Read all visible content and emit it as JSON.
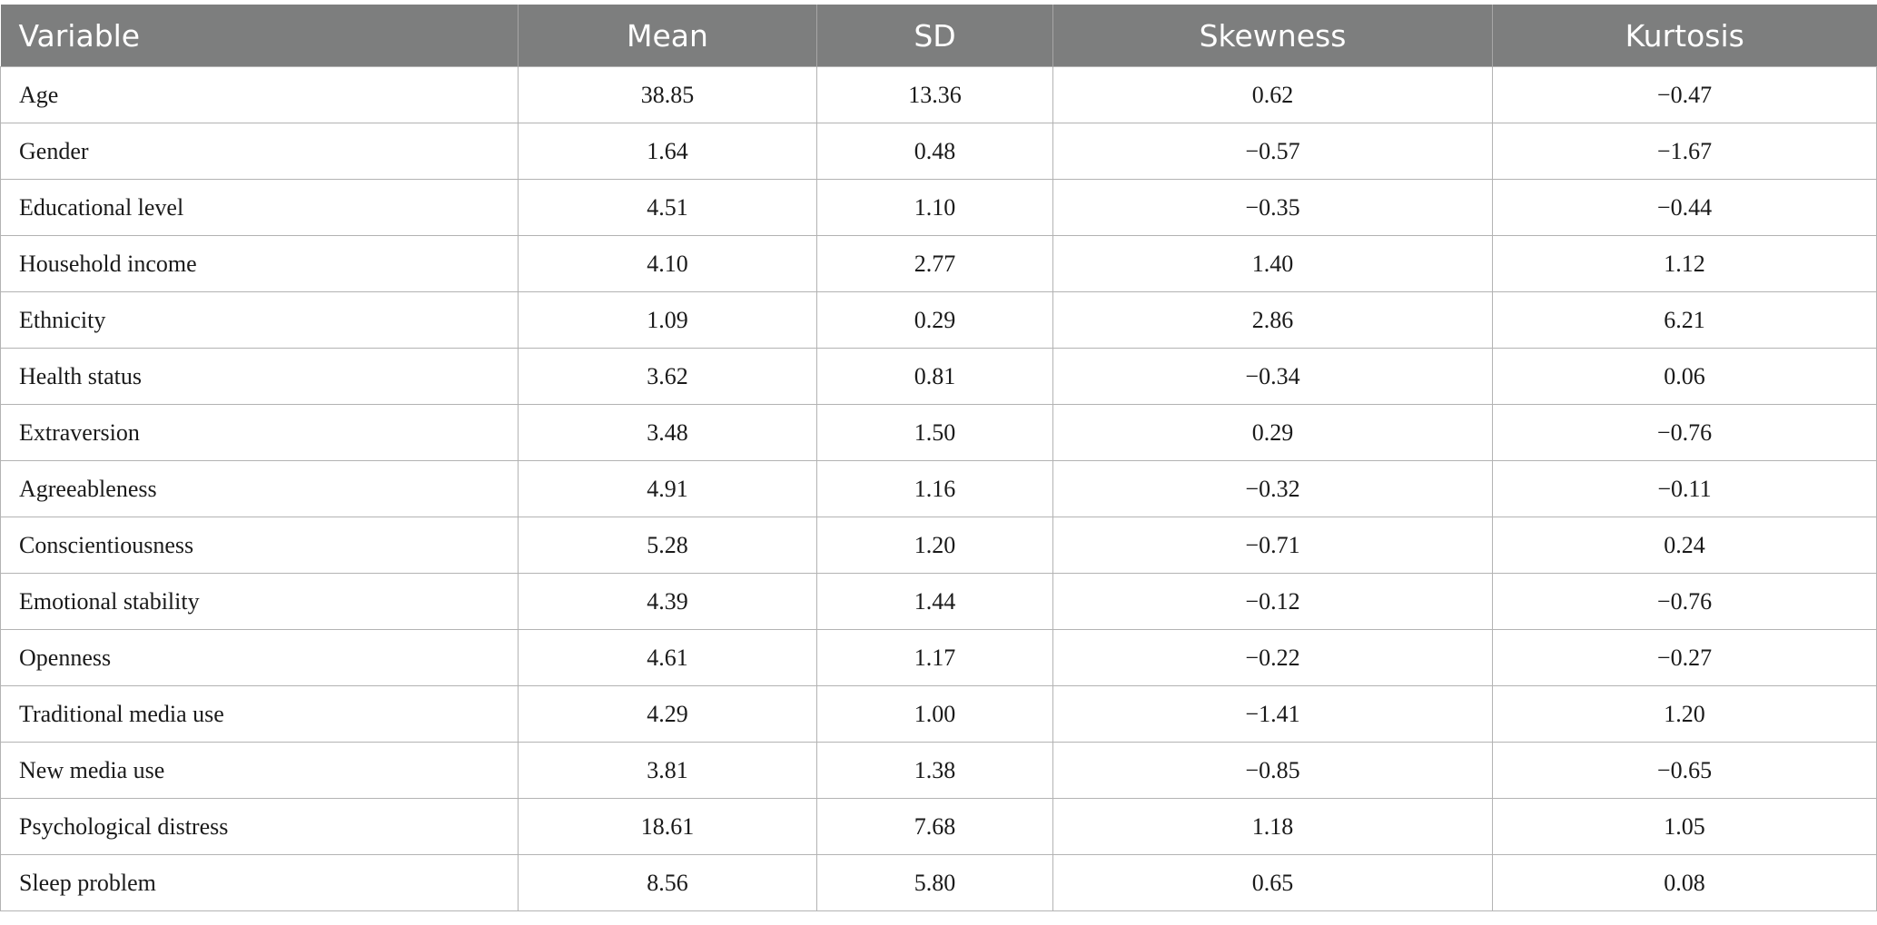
{
  "table": {
    "headers": [
      "Variable",
      "Mean",
      "SD",
      "Skewness",
      "Kurtosis"
    ],
    "rows": [
      [
        "Age",
        "38.85",
        "13.36",
        "0.62",
        "−0.47"
      ],
      [
        "Gender",
        "1.64",
        "0.48",
        "−0.57",
        "−1.67"
      ],
      [
        "Educational level",
        "4.51",
        "1.10",
        "−0.35",
        "−0.44"
      ],
      [
        "Household income",
        "4.10",
        "2.77",
        "1.40",
        "1.12"
      ],
      [
        "Ethnicity",
        "1.09",
        "0.29",
        "2.86",
        "6.21"
      ],
      [
        "Health status",
        "3.62",
        "0.81",
        "−0.34",
        "0.06"
      ],
      [
        "Extraversion",
        "3.48",
        "1.50",
        "0.29",
        "−0.76"
      ],
      [
        "Agreeableness",
        "4.91",
        "1.16",
        "−0.32",
        "−0.11"
      ],
      [
        "Conscientiousness",
        "5.28",
        "1.20",
        "−0.71",
        "0.24"
      ],
      [
        "Emotional stability",
        "4.39",
        "1.44",
        "−0.12",
        "−0.76"
      ],
      [
        "Openness",
        "4.61",
        "1.17",
        "−0.22",
        "−0.27"
      ],
      [
        "Traditional media use",
        "4.29",
        "1.00",
        "−1.41",
        "1.20"
      ],
      [
        "New media use",
        "3.81",
        "1.38",
        "−0.85",
        "−0.65"
      ],
      [
        "Psychological distress",
        "18.61",
        "7.68",
        "1.18",
        "1.05"
      ],
      [
        "Sleep problem",
        "8.56",
        "5.80",
        "0.65",
        "0.08"
      ]
    ]
  }
}
